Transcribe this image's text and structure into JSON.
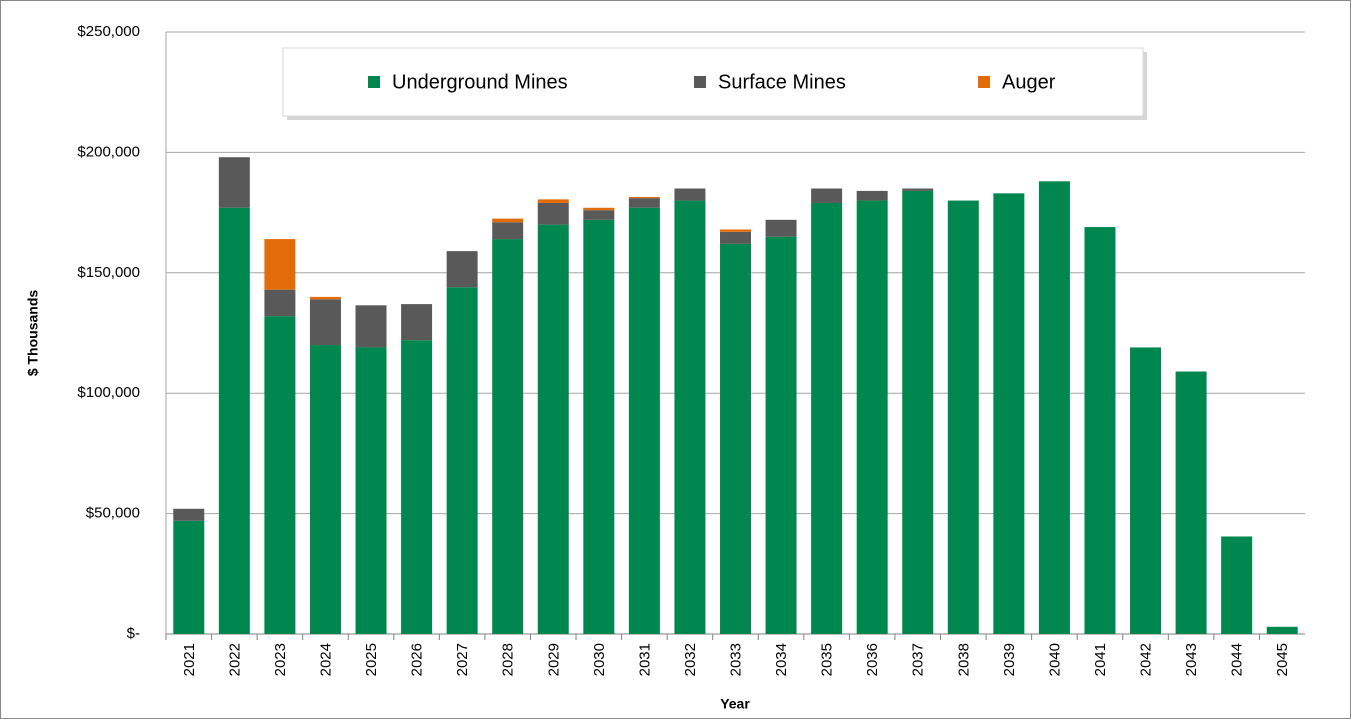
{
  "chart_data": {
    "type": "stacked-bar",
    "x_label": "Year",
    "y_label": "$ Thousands",
    "categories": [
      "2021",
      "2022",
      "2023",
      "2024",
      "2025",
      "2026",
      "2027",
      "2028",
      "2029",
      "2030",
      "2031",
      "2032",
      "2033",
      "2034",
      "2035",
      "2036",
      "2037",
      "2038",
      "2039",
      "2040",
      "2041",
      "2042",
      "2043",
      "2044",
      "2045"
    ],
    "series": [
      {
        "name": "Underground Mines",
        "color": "#00874f",
        "values": [
          47000,
          177000,
          132000,
          120000,
          119000,
          122000,
          144000,
          164000,
          170000,
          172000,
          177000,
          180000,
          162000,
          165000,
          179000,
          180000,
          184000,
          180000,
          183000,
          188000,
          169000,
          119000,
          109000,
          40500,
          3000
        ]
      },
      {
        "name": "Surface Mines",
        "color": "#595959",
        "values": [
          5000,
          21000,
          11000,
          19000,
          17500,
          15000,
          15000,
          7000,
          9000,
          4000,
          4000,
          5000,
          5000,
          7000,
          6000,
          4000,
          1000,
          0,
          0,
          0,
          0,
          0,
          0,
          0,
          0
        ]
      },
      {
        "name": "Auger",
        "color": "#e36c0a",
        "values": [
          0,
          0,
          21000,
          1000,
          0,
          0,
          0,
          1500,
          1500,
          1000,
          500,
          0,
          1000,
          0,
          0,
          0,
          0,
          0,
          0,
          0,
          0,
          0,
          0,
          0,
          0
        ]
      }
    ],
    "ylim": [
      0,
      250000
    ],
    "yticks": [
      {
        "value": 0,
        "label": "$-"
      },
      {
        "value": 50000,
        "label": "$50,000"
      },
      {
        "value": 100000,
        "label": "$100,000"
      },
      {
        "value": 150000,
        "label": "$150,000"
      },
      {
        "value": 200000,
        "label": "$200,000"
      },
      {
        "value": 250000,
        "label": "$250,000"
      }
    ],
    "grid": true,
    "legend": "top"
  }
}
